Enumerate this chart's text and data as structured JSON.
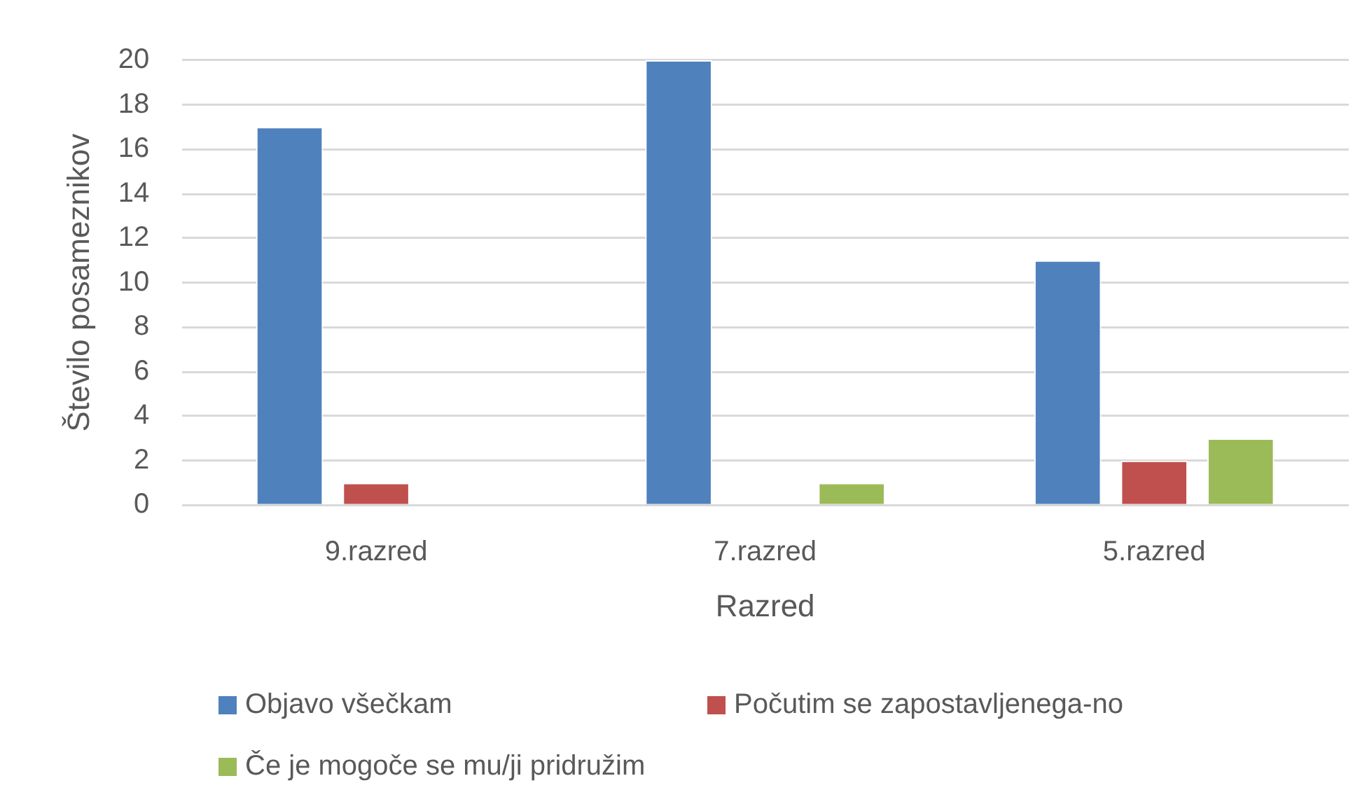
{
  "chart_data": {
    "type": "bar",
    "xlabel": "Razred",
    "ylabel": "Število posameznikov",
    "categories": [
      "9.razred",
      "7.razred",
      "5.razred"
    ],
    "series": [
      {
        "name": "Objavo všečkam",
        "color": "#4f81bd",
        "values": [
          17,
          20,
          11
        ]
      },
      {
        "name": "Počutim se zapostavljenega-no",
        "color": "#c0504d",
        "values": [
          1,
          0,
          2
        ]
      },
      {
        "name": "Če je mogoče se mu/ji pridružim",
        "color": "#9bbb59",
        "values": [
          0,
          1,
          3
        ]
      }
    ],
    "ylim": [
      0,
      20
    ],
    "yticks": [
      0,
      2,
      4,
      6,
      8,
      10,
      12,
      14,
      16,
      18,
      20
    ],
    "grid": "y",
    "legend": "bottom"
  }
}
